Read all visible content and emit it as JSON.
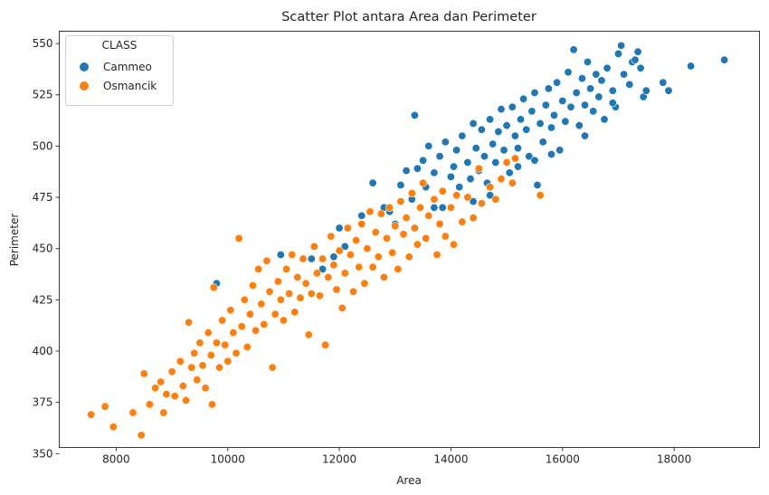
{
  "chart_data": {
    "type": "scatter",
    "title": "Scatter Plot antara Area dan Perimeter",
    "xlabel": "Area",
    "ylabel": "Perimeter",
    "xlim": [
      6980,
      19530
    ],
    "ylim": [
      353,
      556
    ],
    "xticks": [
      8000,
      10000,
      12000,
      14000,
      16000,
      18000
    ],
    "yticks": [
      350,
      375,
      400,
      425,
      450,
      475,
      500,
      525,
      550
    ],
    "grid": false,
    "legend": {
      "title": "CLASS",
      "placement": "top-left"
    },
    "series": [
      {
        "name": "Cammeo",
        "color": "#1f77b4",
        "points": [
          [
            9800,
            433
          ],
          [
            10950,
            447
          ],
          [
            11500,
            445
          ],
          [
            11700,
            440
          ],
          [
            11900,
            446
          ],
          [
            12000,
            460
          ],
          [
            12100,
            451
          ],
          [
            12400,
            466
          ],
          [
            12600,
            482
          ],
          [
            12800,
            470
          ],
          [
            12900,
            468
          ],
          [
            13000,
            462
          ],
          [
            13100,
            481
          ],
          [
            13200,
            488
          ],
          [
            13300,
            474
          ],
          [
            13350,
            515
          ],
          [
            13400,
            489
          ],
          [
            13500,
            493
          ],
          [
            13550,
            480
          ],
          [
            13600,
            500
          ],
          [
            13700,
            487
          ],
          [
            13800,
            495
          ],
          [
            13850,
            470
          ],
          [
            13900,
            502
          ],
          [
            14000,
            485
          ],
          [
            14050,
            490
          ],
          [
            14100,
            498
          ],
          [
            14150,
            480
          ],
          [
            14200,
            505
          ],
          [
            14300,
            492
          ],
          [
            14350,
            484
          ],
          [
            14400,
            511
          ],
          [
            14450,
            499
          ],
          [
            14500,
            488
          ],
          [
            14550,
            508
          ],
          [
            14600,
            495
          ],
          [
            14650,
            482
          ],
          [
            14700,
            513
          ],
          [
            14750,
            501
          ],
          [
            14800,
            492
          ],
          [
            14850,
            507
          ],
          [
            14900,
            518
          ],
          [
            14950,
            498
          ],
          [
            15000,
            510
          ],
          [
            15050,
            487
          ],
          [
            15100,
            519
          ],
          [
            15150,
            505
          ],
          [
            15200,
            499
          ],
          [
            15250,
            513
          ],
          [
            15300,
            523
          ],
          [
            15350,
            508
          ],
          [
            15400,
            495
          ],
          [
            15450,
            517
          ],
          [
            15500,
            526
          ],
          [
            15550,
            481
          ],
          [
            15600,
            511
          ],
          [
            15650,
            502
          ],
          [
            15700,
            520
          ],
          [
            15750,
            528
          ],
          [
            15800,
            509
          ],
          [
            15850,
            515
          ],
          [
            15900,
            531
          ],
          [
            15950,
            498
          ],
          [
            16000,
            522
          ],
          [
            16050,
            512
          ],
          [
            16100,
            536
          ],
          [
            16150,
            519
          ],
          [
            16200,
            547
          ],
          [
            16250,
            526
          ],
          [
            16300,
            510
          ],
          [
            16350,
            533
          ],
          [
            16400,
            520
          ],
          [
            16450,
            541
          ],
          [
            16500,
            528
          ],
          [
            16550,
            517
          ],
          [
            16600,
            535
          ],
          [
            16650,
            524
          ],
          [
            16700,
            532
          ],
          [
            16750,
            513
          ],
          [
            16800,
            538
          ],
          [
            16900,
            527
          ],
          [
            16950,
            519
          ],
          [
            17000,
            545
          ],
          [
            17050,
            549
          ],
          [
            17100,
            535
          ],
          [
            17200,
            530
          ],
          [
            17250,
            541
          ],
          [
            17300,
            542
          ],
          [
            17350,
            546
          ],
          [
            17400,
            538
          ],
          [
            17450,
            524
          ],
          [
            17500,
            527
          ],
          [
            17800,
            531
          ],
          [
            17900,
            527
          ],
          [
            18300,
            539
          ],
          [
            18900,
            542
          ],
          [
            15500,
            493
          ],
          [
            15800,
            496
          ],
          [
            16400,
            505
          ],
          [
            14700,
            476
          ],
          [
            14400,
            473
          ],
          [
            13700,
            470
          ],
          [
            15200,
            490
          ],
          [
            16900,
            521
          ]
        ]
      },
      {
        "name": "Osmancik",
        "color": "#ff7f0e",
        "points": [
          [
            7550,
            369
          ],
          [
            7800,
            373
          ],
          [
            7950,
            363
          ],
          [
            8300,
            370
          ],
          [
            8450,
            359
          ],
          [
            8500,
            389
          ],
          [
            8600,
            374
          ],
          [
            8700,
            382
          ],
          [
            8800,
            385
          ],
          [
            8850,
            370
          ],
          [
            8900,
            379
          ],
          [
            9000,
            390
          ],
          [
            9050,
            378
          ],
          [
            9150,
            395
          ],
          [
            9200,
            383
          ],
          [
            9250,
            376
          ],
          [
            9300,
            414
          ],
          [
            9350,
            392
          ],
          [
            9400,
            399
          ],
          [
            9450,
            386
          ],
          [
            9500,
            404
          ],
          [
            9550,
            393
          ],
          [
            9600,
            382
          ],
          [
            9650,
            409
          ],
          [
            9700,
            398
          ],
          [
            9720,
            374
          ],
          [
            9750,
            431
          ],
          [
            9800,
            404
          ],
          [
            9850,
            392
          ],
          [
            9900,
            415
          ],
          [
            9950,
            403
          ],
          [
            10000,
            395
          ],
          [
            10050,
            420
          ],
          [
            10100,
            409
          ],
          [
            10150,
            399
          ],
          [
            10200,
            455
          ],
          [
            10250,
            412
          ],
          [
            10300,
            425
          ],
          [
            10350,
            402
          ],
          [
            10400,
            418
          ],
          [
            10450,
            432
          ],
          [
            10500,
            410
          ],
          [
            10550,
            440
          ],
          [
            10600,
            423
          ],
          [
            10650,
            413
          ],
          [
            10700,
            444
          ],
          [
            10750,
            429
          ],
          [
            10800,
            392
          ],
          [
            10850,
            418
          ],
          [
            10900,
            434
          ],
          [
            10950,
            425
          ],
          [
            11000,
            415
          ],
          [
            11050,
            440
          ],
          [
            11100,
            428
          ],
          [
            11150,
            447
          ],
          [
            11200,
            419
          ],
          [
            11250,
            436
          ],
          [
            11300,
            426
          ],
          [
            11350,
            445
          ],
          [
            11400,
            433
          ],
          [
            11450,
            408
          ],
          [
            11500,
            428
          ],
          [
            11550,
            451
          ],
          [
            11600,
            438
          ],
          [
            11650,
            427
          ],
          [
            11700,
            445
          ],
          [
            11750,
            403
          ],
          [
            11800,
            436
          ],
          [
            11850,
            456
          ],
          [
            11900,
            442
          ],
          [
            11950,
            430
          ],
          [
            12000,
            449
          ],
          [
            12050,
            421
          ],
          [
            12100,
            438
          ],
          [
            12150,
            460
          ],
          [
            12200,
            447
          ],
          [
            12250,
            429
          ],
          [
            12300,
            454
          ],
          [
            12350,
            441
          ],
          [
            12400,
            462
          ],
          [
            12450,
            433
          ],
          [
            12500,
            450
          ],
          [
            12550,
            468
          ],
          [
            12600,
            441
          ],
          [
            12650,
            458
          ],
          [
            12700,
            446
          ],
          [
            12750,
            467
          ],
          [
            12800,
            436
          ],
          [
            12850,
            455
          ],
          [
            12900,
            470
          ],
          [
            12950,
            448
          ],
          [
            13000,
            461
          ],
          [
            13050,
            440
          ],
          [
            13100,
            473
          ],
          [
            13150,
            457
          ],
          [
            13200,
            465
          ],
          [
            13250,
            446
          ],
          [
            13300,
            477
          ],
          [
            13350,
            460
          ],
          [
            13400,
            452
          ],
          [
            13450,
            470
          ],
          [
            13500,
            482
          ],
          [
            13550,
            455
          ],
          [
            13600,
            466
          ],
          [
            13700,
            474
          ],
          [
            13750,
            447
          ],
          [
            13800,
            462
          ],
          [
            13850,
            478
          ],
          [
            13900,
            456
          ],
          [
            14000,
            470
          ],
          [
            14050,
            452
          ],
          [
            14100,
            476
          ],
          [
            14200,
            463
          ],
          [
            14300,
            475
          ],
          [
            14400,
            465
          ],
          [
            14500,
            489
          ],
          [
            14550,
            472
          ],
          [
            14700,
            480
          ],
          [
            14800,
            474
          ],
          [
            14900,
            484
          ],
          [
            15000,
            492
          ],
          [
            15100,
            482
          ],
          [
            15150,
            494
          ],
          [
            15600,
            476
          ]
        ]
      }
    ]
  }
}
